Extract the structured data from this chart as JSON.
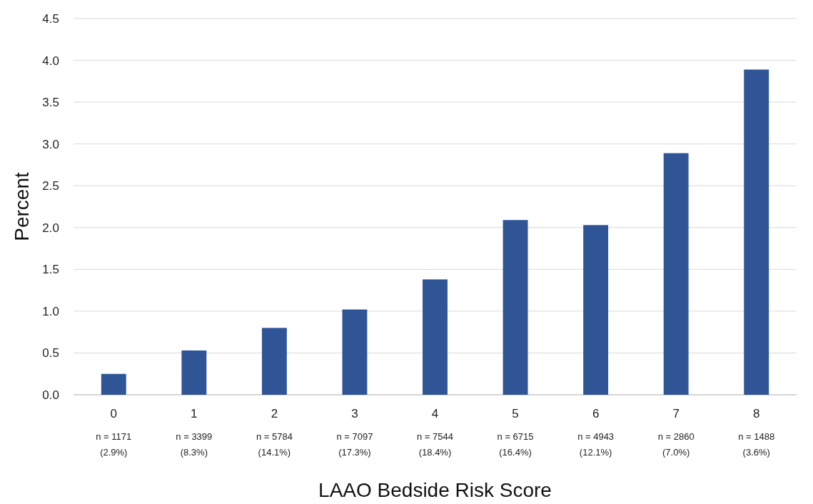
{
  "chart_data": {
    "type": "bar",
    "xlabel": "LAAO Bedside Risk Score",
    "ylabel": "Percent",
    "categories": [
      "0\nn = 1171\n(2.9%)",
      "1\nn = 3399\n(8.3%)",
      "2\nn = 5784\n(14.1%)",
      "3\nn = 7097\n(17.3%)",
      "4\nn = 7544\n(18.4%)",
      "5\nn = 6715\n(16.4%)",
      "6\nn = 4943\n(12.1%)",
      "7\nn = 2860\n(7.0%)",
      "8\nn = 1488\n(3.6%)"
    ],
    "values": [
      0.25,
      0.53,
      0.8,
      1.02,
      1.38,
      2.09,
      2.03,
      2.89,
      3.89
    ],
    "color": "#2f5597",
    "ylim": [
      0,
      4.5
    ],
    "yticks": [
      {
        "value": 0,
        "label": "0.0"
      },
      {
        "value": 0.5,
        "label": "0.5"
      },
      {
        "value": 1,
        "label": "1.0"
      },
      {
        "value": 1.5,
        "label": "1.5"
      },
      {
        "value": 2,
        "label": "2.0"
      },
      {
        "value": 2.5,
        "label": "2.5"
      },
      {
        "value": 3,
        "label": "3.0"
      },
      {
        "value": 3.5,
        "label": "3.5"
      },
      {
        "value": 4,
        "label": "4.0"
      },
      {
        "value": 4.5,
        "label": "4.5"
      }
    ],
    "grid": "y"
  }
}
